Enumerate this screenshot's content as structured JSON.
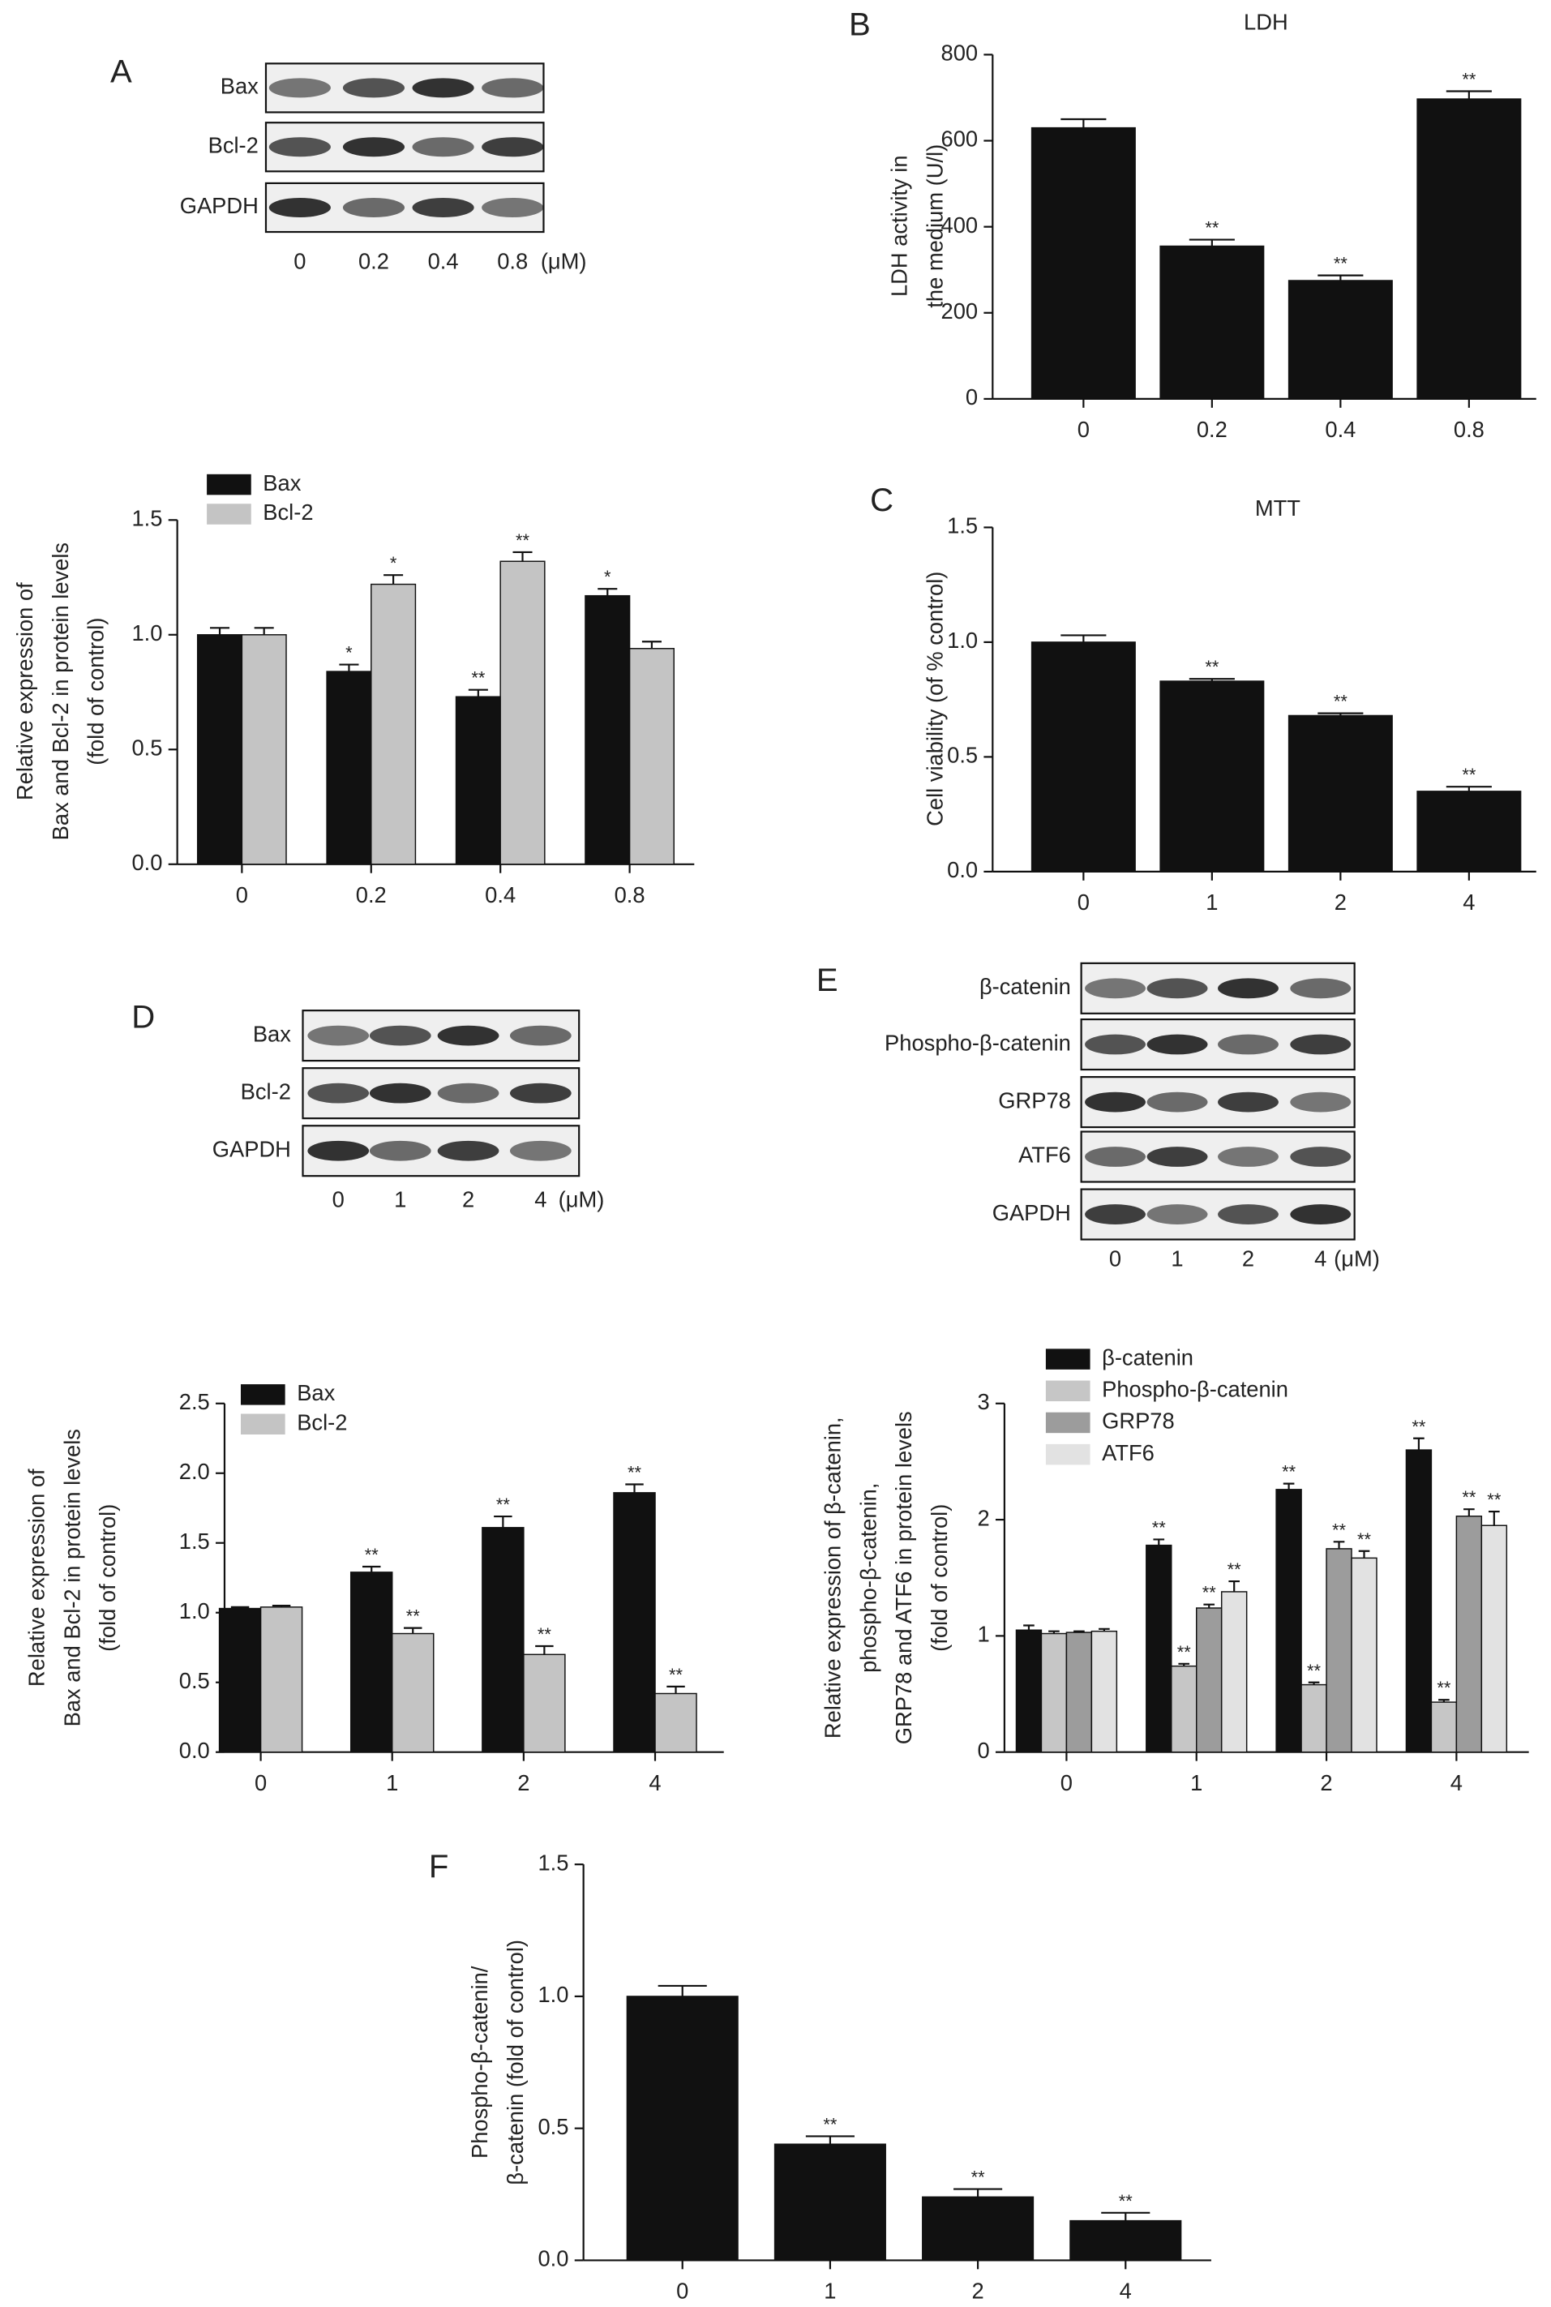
{
  "blots": [
    {
      "panel": "A",
      "rows": [
        "Bax",
        "Bcl-2",
        "GAPDH"
      ],
      "lanes": [
        "0",
        "0.2",
        "0.4",
        "0.8"
      ],
      "unit": "(μM)"
    },
    {
      "panel": "D",
      "rows": [
        "Bax",
        "Bcl-2",
        "GAPDH"
      ],
      "lanes": [
        "0",
        "1",
        "2",
        "4"
      ],
      "unit": "(μM)"
    },
    {
      "panel": "E",
      "rows": [
        "β-catenin",
        "Phospho-β-catenin",
        "GRP78",
        "ATF6",
        "GAPDH"
      ],
      "lanes": [
        "0",
        "1",
        "2",
        "4"
      ],
      "unit": "(μM)"
    }
  ],
  "chart_data": [
    {
      "type": "bar",
      "ylabel": [
        "Relative expression of",
        "Bax and Bcl-2 in protein levels",
        "(fold of control)"
      ],
      "categories": [
        "0",
        "0.2",
        "0.4",
        "0.8"
      ],
      "series": [
        {
          "name": "Bax",
          "color": "#111111",
          "values": [
            1.0,
            0.84,
            0.73,
            1.17
          ],
          "errors": [
            0.03,
            0.03,
            0.03,
            0.03
          ],
          "annotations": [
            null,
            "*",
            "**",
            "*"
          ]
        },
        {
          "name": "Bcl-2",
          "color": "#c4c4c4",
          "values": [
            1.0,
            1.22,
            1.32,
            0.94
          ],
          "errors": [
            0.03,
            0.04,
            0.04,
            0.03
          ],
          "annotations": [
            null,
            "*",
            "**",
            null
          ]
        }
      ],
      "ylim": [
        0,
        1.5
      ],
      "yticks": [
        {
          "value": 0,
          "label": "0.0"
        },
        {
          "value": 0.5,
          "label": "0.5"
        },
        {
          "value": 1,
          "label": "1.0"
        },
        {
          "value": 1.5,
          "label": "1.5"
        }
      ]
    },
    {
      "type": "bar",
      "panel": "B",
      "title": "LDH",
      "ylabel": [
        "LDH activity in",
        "the medium (U/l)"
      ],
      "categories": [
        "0",
        "0.2",
        "0.4",
        "0.8"
      ],
      "values": [
        630,
        355,
        275,
        697
      ],
      "errors": [
        20,
        15,
        12,
        18
      ],
      "annotations": [
        null,
        "**",
        "**",
        "**"
      ],
      "color": "#111111",
      "ylim": [
        0,
        800
      ],
      "yticks": [
        0,
        200,
        400,
        600,
        800
      ]
    },
    {
      "type": "bar",
      "panel": "C",
      "title": "MTT",
      "ylabel": [
        "Cell viability (of % control)"
      ],
      "categories": [
        "0",
        "1",
        "2",
        "4"
      ],
      "values": [
        1.0,
        0.83,
        0.68,
        0.35
      ],
      "errors": [
        0.03,
        0.01,
        0.01,
        0.02
      ],
      "annotations": [
        null,
        "**",
        "**",
        "**"
      ],
      "color": "#111111",
      "ylim": [
        0,
        1.5
      ],
      "yticks": [
        {
          "value": 0,
          "label": "0.0"
        },
        {
          "value": 0.5,
          "label": "0.5"
        },
        {
          "value": 1,
          "label": "1.0"
        },
        {
          "value": 1.5,
          "label": "1.5"
        }
      ]
    },
    {
      "type": "bar",
      "ylabel": [
        "Relative expression of",
        "Bax and Bcl-2 in protein levels",
        "(fold of control)"
      ],
      "categories": [
        "0",
        "1",
        "2",
        "4"
      ],
      "series": [
        {
          "name": "Bax",
          "color": "#111111",
          "values": [
            1.03,
            1.29,
            1.61,
            1.86
          ],
          "errors": [
            0.01,
            0.04,
            0.08,
            0.06
          ],
          "annotations": [
            null,
            "**",
            "**",
            "**"
          ]
        },
        {
          "name": "Bcl-2",
          "color": "#c4c4c4",
          "values": [
            1.04,
            0.85,
            0.7,
            0.42
          ],
          "errors": [
            0.01,
            0.04,
            0.06,
            0.05
          ],
          "annotations": [
            null,
            "**",
            "**",
            "**"
          ]
        }
      ],
      "ylim": [
        0,
        2.5
      ],
      "yticks": [
        {
          "value": 0,
          "label": "0.0"
        },
        {
          "value": 0.5,
          "label": "0.5"
        },
        {
          "value": 1,
          "label": "1.0"
        },
        {
          "value": 1.5,
          "label": "1.5"
        },
        {
          "value": 2,
          "label": "2.0"
        },
        {
          "value": 2.5,
          "label": "2.5"
        }
      ]
    },
    {
      "type": "bar",
      "ylabel": [
        "Relative expression of β-catenin,",
        "phospho-β-catenin,",
        "GRP78 and ATF6 in protein levels",
        "(fold of control)"
      ],
      "categories": [
        "0",
        "1",
        "2",
        "4"
      ],
      "series": [
        {
          "name": "β-catenin",
          "color": "#111111",
          "values": [
            1.05,
            1.78,
            2.26,
            2.6
          ],
          "errors": [
            0.04,
            0.05,
            0.05,
            0.1
          ],
          "annotations": [
            null,
            "**",
            "**",
            "**"
          ]
        },
        {
          "name": "Phospho-β-catenin",
          "color": "#c6c6c6",
          "values": [
            1.02,
            0.74,
            0.58,
            0.43
          ],
          "errors": [
            0.02,
            0.02,
            0.02,
            0.02
          ],
          "annotations": [
            null,
            "**",
            "**",
            "**"
          ]
        },
        {
          "name": "GRP78",
          "color": "#9c9c9c",
          "values": [
            1.03,
            1.24,
            1.75,
            2.03
          ],
          "errors": [
            0.01,
            0.03,
            0.06,
            0.06
          ],
          "annotations": [
            null,
            "**",
            "**",
            "**"
          ]
        },
        {
          "name": "ATF6",
          "color": "#e2e2e2",
          "values": [
            1.04,
            1.38,
            1.67,
            1.95
          ],
          "errors": [
            0.02,
            0.09,
            0.06,
            0.12
          ],
          "annotations": [
            null,
            "**",
            "**",
            "**"
          ]
        }
      ],
      "ylim": [
        0,
        3
      ],
      "yticks": [
        0,
        1,
        2,
        3
      ]
    },
    {
      "type": "bar",
      "panel": "F",
      "ylabel": [
        "Phospho-β-catenin/",
        "β-catenin (fold of control)"
      ],
      "categories": [
        "0",
        "1",
        "2",
        "4"
      ],
      "values": [
        1.0,
        0.44,
        0.24,
        0.15
      ],
      "errors": [
        0.04,
        0.03,
        0.03,
        0.03
      ],
      "annotations": [
        null,
        "**",
        "**",
        "**"
      ],
      "color": "#111111",
      "ylim": [
        0,
        1.5
      ],
      "yticks": [
        {
          "value": 0,
          "label": "0.0"
        },
        {
          "value": 0.5,
          "label": "0.5"
        },
        {
          "value": 1,
          "label": "1.0"
        },
        {
          "value": 1.5,
          "label": "1.5"
        }
      ]
    }
  ]
}
